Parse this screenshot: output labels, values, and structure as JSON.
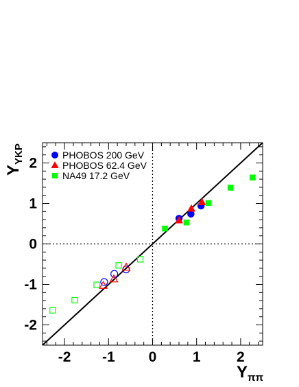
{
  "chart_data": {
    "type": "scatter",
    "xlabel_main": "Y",
    "xlabel_sub": "ππ",
    "ylabel_main": "Y",
    "ylabel_sub": "YKP",
    "xlim": [
      -2.5,
      2.5
    ],
    "ylim": [
      -2.5,
      2.5
    ],
    "x_ticks": [
      -2,
      -1,
      0,
      1,
      2
    ],
    "y_ticks": [
      -2,
      -1,
      0,
      1,
      2
    ],
    "reference_line": "y = x",
    "dotted_lines": [
      "x = 0",
      "y = 0"
    ],
    "legend_position": "top-left",
    "series": [
      {
        "name": "PHOBOS 200 GeV",
        "marker": "circle",
        "color": "#0000ff",
        "points": [
          {
            "x": 0.6,
            "y": 0.63,
            "filled": true
          },
          {
            "x": 0.87,
            "y": 0.74,
            "filled": true
          },
          {
            "x": 1.1,
            "y": 0.94,
            "filled": true
          },
          {
            "x": -0.6,
            "y": -0.63,
            "filled": false
          },
          {
            "x": -0.87,
            "y": -0.74,
            "filled": false
          },
          {
            "x": -1.1,
            "y": -0.94,
            "filled": false
          }
        ]
      },
      {
        "name": "PHOBOS 62.4 GeV",
        "marker": "triangle",
        "color": "#ff0000",
        "points": [
          {
            "x": 0.6,
            "y": 0.58,
            "filled": true
          },
          {
            "x": 0.88,
            "y": 0.87,
            "filled": true
          },
          {
            "x": 1.12,
            "y": 1.03,
            "filled": true
          },
          {
            "x": -0.6,
            "y": -0.58,
            "filled": false
          },
          {
            "x": -0.88,
            "y": -0.87,
            "filled": false
          },
          {
            "x": -1.12,
            "y": -1.03,
            "filled": false
          }
        ]
      },
      {
        "name": "NA49 17.2 GeV",
        "marker": "square",
        "color": "#00ff00",
        "points": [
          {
            "x": 0.28,
            "y": 0.38,
            "filled": true
          },
          {
            "x": 0.77,
            "y": 0.53,
            "filled": true
          },
          {
            "x": 1.27,
            "y": 1.01,
            "filled": true
          },
          {
            "x": 1.77,
            "y": 1.39,
            "filled": true
          },
          {
            "x": 2.27,
            "y": 1.64,
            "filled": true
          },
          {
            "x": -0.28,
            "y": -0.38,
            "filled": false
          },
          {
            "x": -0.77,
            "y": -0.53,
            "filled": false
          },
          {
            "x": -1.27,
            "y": -1.01,
            "filled": false
          },
          {
            "x": -1.77,
            "y": -1.39,
            "filled": false
          },
          {
            "x": -2.27,
            "y": -1.64,
            "filled": false
          }
        ]
      }
    ]
  }
}
